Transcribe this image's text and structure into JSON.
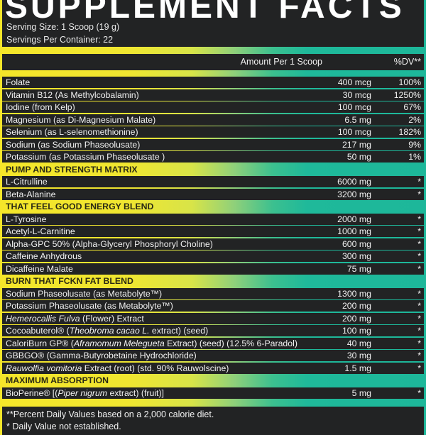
{
  "header": {
    "title": "SUPPLEMENT FACTS",
    "serving_size": "Serving Size: 1 Scoop (19 g)",
    "servings_per_container": "Servings Per Container: 22"
  },
  "columns": {
    "amount": "Amount Per 1 Scoop",
    "dv": "%DV**"
  },
  "colors": {
    "panel": "#222324",
    "gradient_start": "#f5e62a",
    "gradient_end": "#1db79a"
  },
  "rows": [
    {
      "type": "item",
      "name": [
        {
          "t": "Folate"
        }
      ],
      "amount": "400 mcg",
      "dv": "100%"
    },
    {
      "type": "item",
      "name": [
        {
          "t": "Vitamin B12 (As Methylcobalamin)"
        }
      ],
      "amount": "30 mcg",
      "dv": "1250%"
    },
    {
      "type": "item",
      "name": [
        {
          "t": "Iodine (from Kelp)"
        }
      ],
      "amount": "100 mcg",
      "dv": "67%"
    },
    {
      "type": "item",
      "name": [
        {
          "t": "Magnesium (as Di-Magnesium Malate)"
        }
      ],
      "amount": "6.5 mg",
      "dv": "2%"
    },
    {
      "type": "item",
      "name": [
        {
          "t": "Selenium (as L-selenomethionine)"
        }
      ],
      "amount": "100 mcg",
      "dv": "182%"
    },
    {
      "type": "item",
      "name": [
        {
          "t": "Sodium (as Sodium Phaseolusate)"
        }
      ],
      "amount": "217 mg",
      "dv": "9%"
    },
    {
      "type": "item",
      "name": [
        {
          "t": "Potassium (as Potassium Phaseolusate )"
        }
      ],
      "amount": "50 mg",
      "dv": "1%"
    },
    {
      "type": "section",
      "label": "PUMP AND STRENGTH MATRIX"
    },
    {
      "type": "item",
      "name": [
        {
          "t": "L-Citrulline"
        }
      ],
      "amount": "6000 mg",
      "dv": "*"
    },
    {
      "type": "item",
      "name": [
        {
          "t": "Beta-Alanine"
        }
      ],
      "amount": "3200 mg",
      "dv": "*"
    },
    {
      "type": "section",
      "label": "THAT FEEL GOOD ENERGY BLEND"
    },
    {
      "type": "item",
      "name": [
        {
          "t": "L-Tyrosine"
        }
      ],
      "amount": "2000 mg",
      "dv": "*"
    },
    {
      "type": "item",
      "name": [
        {
          "t": "Acetyl-L-Carnitine"
        }
      ],
      "amount": "1000 mg",
      "dv": "*"
    },
    {
      "type": "item",
      "name": [
        {
          "t": "Alpha-GPC 50% (Alpha-Glyceryl Phosphoryl Choline)"
        }
      ],
      "amount": "600 mg",
      "dv": "*"
    },
    {
      "type": "item",
      "name": [
        {
          "t": "Caffeine Anhydrous"
        }
      ],
      "amount": "300 mg",
      "dv": "*"
    },
    {
      "type": "item",
      "name": [
        {
          "t": "Dicaffeine Malate"
        }
      ],
      "amount": "75 mg",
      "dv": "*"
    },
    {
      "type": "section",
      "label": "BURN THAT FCKN FAT BLEND"
    },
    {
      "type": "item",
      "name": [
        {
          "t": "Sodium Phaseolusate (as Metabolyte™)"
        }
      ],
      "amount": "1300 mg",
      "dv": "*"
    },
    {
      "type": "item",
      "name": [
        {
          "t": "Potassium Phaseolusate (as Metabolyte™)"
        }
      ],
      "amount": "200 mg",
      "dv": "*"
    },
    {
      "type": "item",
      "name": [
        {
          "t": "Hemerocallis Fulva",
          "i": true
        },
        {
          "t": " (Flower) Extract"
        }
      ],
      "amount": "200 mg",
      "dv": "*"
    },
    {
      "type": "item",
      "name": [
        {
          "t": "Cocoabuterol® ("
        },
        {
          "t": "Theobroma cacao L.",
          "i": true
        },
        {
          "t": " extract) (seed)"
        }
      ],
      "amount": "100 mg",
      "dv": "*"
    },
    {
      "type": "item",
      "name": [
        {
          "t": "CaloriBurn GP® ("
        },
        {
          "t": "Aframomum Melegueta",
          "i": true
        },
        {
          "t": " Extract) (seed) (12.5% 6-Paradol)"
        }
      ],
      "amount": "40 mg",
      "dv": "*"
    },
    {
      "type": "item",
      "name": [
        {
          "t": "GBBGO® (Gamma-Butyrobetaine Hydrochloride)"
        }
      ],
      "amount": "30 mg",
      "dv": "*"
    },
    {
      "type": "item",
      "name": [
        {
          "t": "Rauwolfia vomitoria",
          "i": true
        },
        {
          "t": " Extract (root) (std. 90% Rauwolscine)"
        }
      ],
      "amount": "1.5 mg",
      "dv": "*"
    },
    {
      "type": "section",
      "label": "MAXIMUM ABSORPTION"
    },
    {
      "type": "item",
      "name": [
        {
          "t": "BioPerine® [("
        },
        {
          "t": "Piper nigrum",
          "i": true
        },
        {
          "t": " extract) (fruit)]"
        }
      ],
      "amount": "5 mg",
      "dv": "*"
    }
  ],
  "footer": {
    "note1": "**Percent Daily Values based on a 2,000 calorie diet.",
    "note2": "* Daily Value not established."
  }
}
